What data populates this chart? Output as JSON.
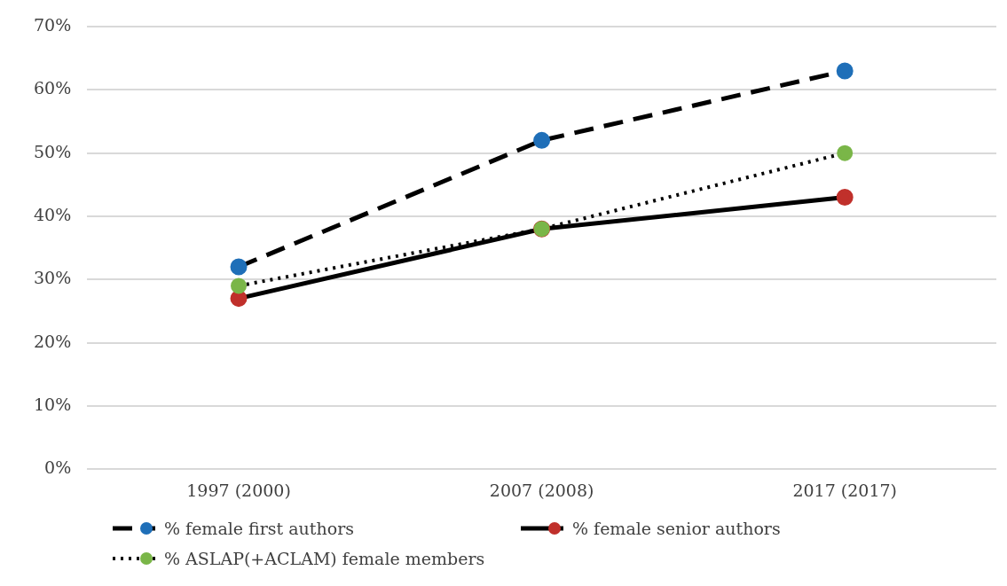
{
  "chart_data": {
    "type": "line",
    "categories": [
      "1997 (2000)",
      "2007 (2008)",
      "2017 (2017)"
    ],
    "series": [
      {
        "name": "% female first authors",
        "color": "#1f6fb8",
        "values": [
          32,
          52,
          63
        ],
        "line_style": "dashed"
      },
      {
        "name": "% female senior authors",
        "color": "#c0302b",
        "values": [
          27,
          38,
          43
        ],
        "line_style": "solid"
      },
      {
        "name": "% ASLAP(+ACLAM) female members",
        "color": "#7ab648",
        "values": [
          29,
          38,
          50
        ],
        "line_style": "dotted"
      }
    ],
    "ylim": [
      0,
      70
    ],
    "yticks": [
      {
        "value": 0,
        "label": "0%"
      },
      {
        "value": 10,
        "label": "10%"
      },
      {
        "value": 20,
        "label": "20%"
      },
      {
        "value": 30,
        "label": "30%"
      },
      {
        "value": 40,
        "label": "40%"
      },
      {
        "value": 50,
        "label": "50%"
      },
      {
        "value": 60,
        "label": "60%"
      },
      {
        "value": 70,
        "label": "70%"
      }
    ],
    "grid": "y",
    "legend": "bottom",
    "marker": "circle"
  }
}
